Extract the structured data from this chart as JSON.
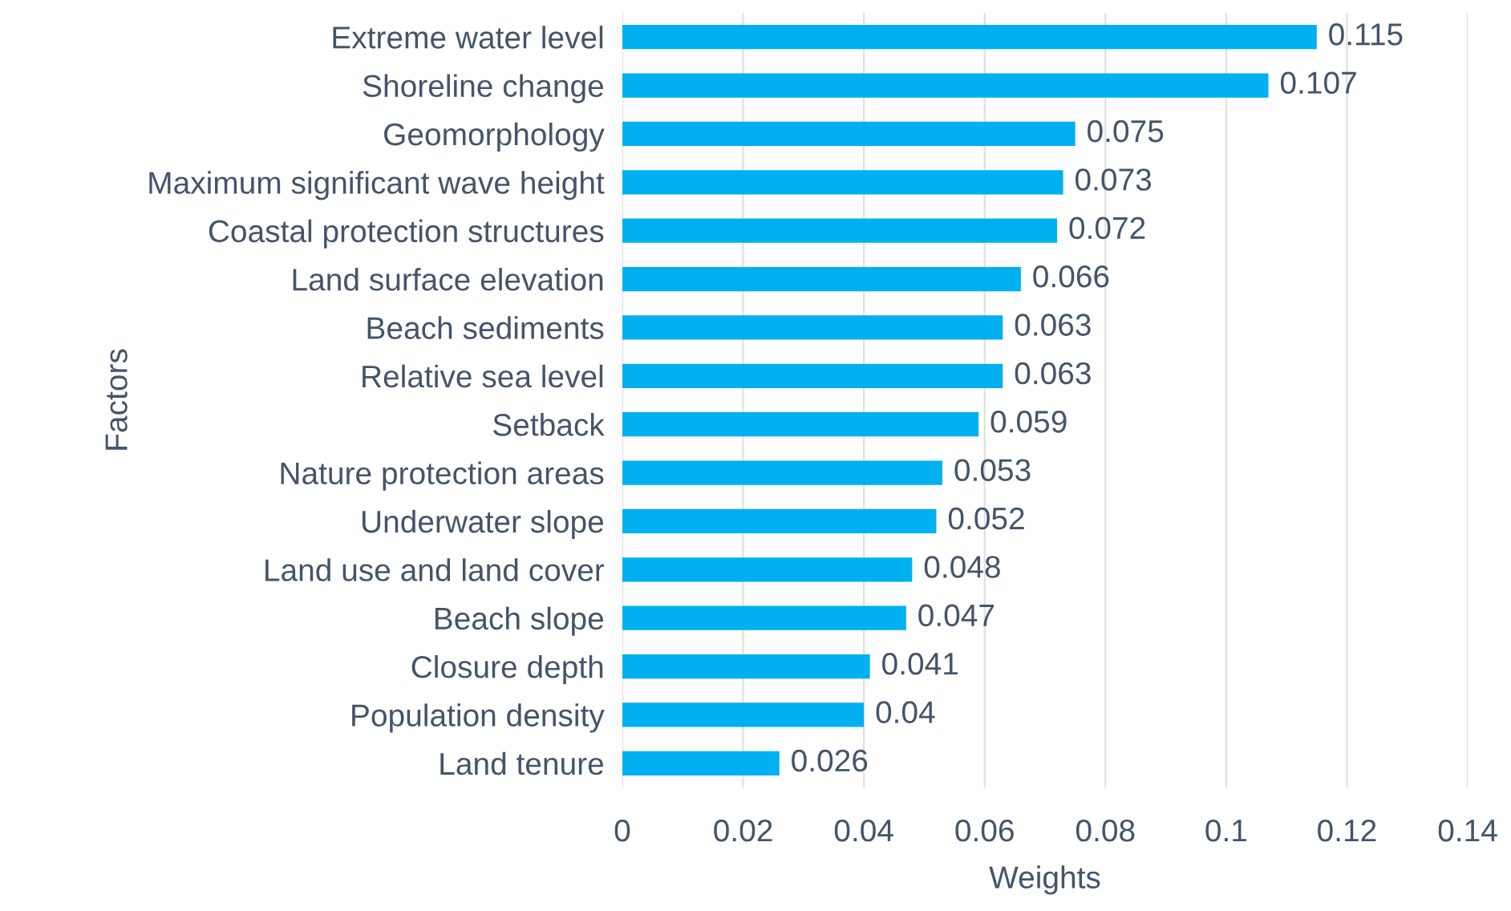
{
  "chart_data": {
    "type": "bar",
    "orientation": "horizontal",
    "xlabel": "Weights",
    "ylabel": "Factors",
    "categories": [
      "Extreme water level",
      "Shoreline change",
      "Geomorphology",
      "Maximum significant wave height",
      "Coastal protection structures",
      "Land surface elevation",
      "Beach sediments",
      "Relative sea level",
      "Setback",
      "Nature protection areas",
      "Underwater slope",
      "Land use and land cover",
      "Beach slope",
      "Closure depth",
      "Population density",
      "Land tenure"
    ],
    "values": [
      0.115,
      0.107,
      0.075,
      0.073,
      0.072,
      0.066,
      0.063,
      0.063,
      0.059,
      0.053,
      0.052,
      0.048,
      0.047,
      0.041,
      0.04,
      0.026
    ],
    "color": "#00b0f0",
    "xlim": [
      0,
      0.14
    ],
    "xticks": [
      0,
      0.02,
      0.04,
      0.06,
      0.08,
      0.1,
      0.12,
      0.14
    ],
    "grid": "x",
    "data_labels": true,
    "legend": false
  }
}
